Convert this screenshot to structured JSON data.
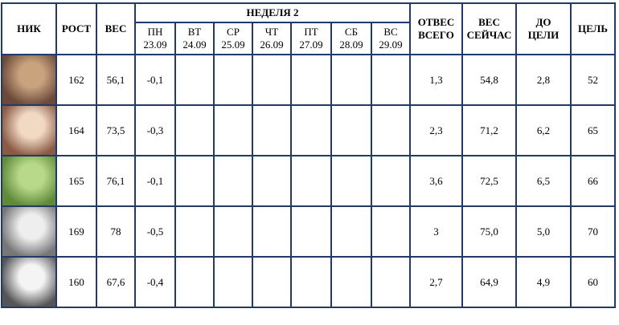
{
  "table": {
    "headers": {
      "nick": "НИК",
      "height": "РОСТ",
      "weight": "ВЕС",
      "week": "НЕДЕЛЯ 2",
      "days": [
        {
          "day": "ПН",
          "date": "23.09"
        },
        {
          "day": "ВТ",
          "date": "24.09"
        },
        {
          "day": "СР",
          "date": "25.09"
        },
        {
          "day": "ЧТ",
          "date": "26.09"
        },
        {
          "day": "ПТ",
          "date": "27.09"
        },
        {
          "day": "СБ",
          "date": "28.09"
        },
        {
          "day": "ВС",
          "date": "29.09"
        }
      ],
      "lost": [
        "ОТВЕС",
        "ВСЕГО"
      ],
      "now": [
        "ВЕС",
        "СЕЙЧАС"
      ],
      "left": [
        "ДО",
        "ЦЕЛИ"
      ],
      "goal": "ЦЕЛЬ"
    },
    "rows": [
      {
        "height": "162",
        "weight": "56,1",
        "week": [
          "-0,1"
        ],
        "lost": "1,3",
        "now": "54,8",
        "left": "2,8",
        "goal": "52"
      },
      {
        "height": "164",
        "weight": "73,5",
        "week": [
          "-0,3"
        ],
        "lost": "2,3",
        "now": "71,2",
        "left": "6,2",
        "goal": "65"
      },
      {
        "height": "165",
        "weight": "76,1",
        "week": [
          "-0,1"
        ],
        "lost": "3,6",
        "now": "72,5",
        "left": "6,5",
        "goal": "66"
      },
      {
        "height": "169",
        "weight": "78",
        "week": [
          "-0,5"
        ],
        "lost": "3",
        "now": "75,0",
        "left": "5,0",
        "goal": "70"
      },
      {
        "height": "160",
        "weight": "67,6",
        "week": [
          "-0,4"
        ],
        "lost": "2,7",
        "now": "64,9",
        "left": "4,9",
        "goal": "60"
      }
    ]
  }
}
